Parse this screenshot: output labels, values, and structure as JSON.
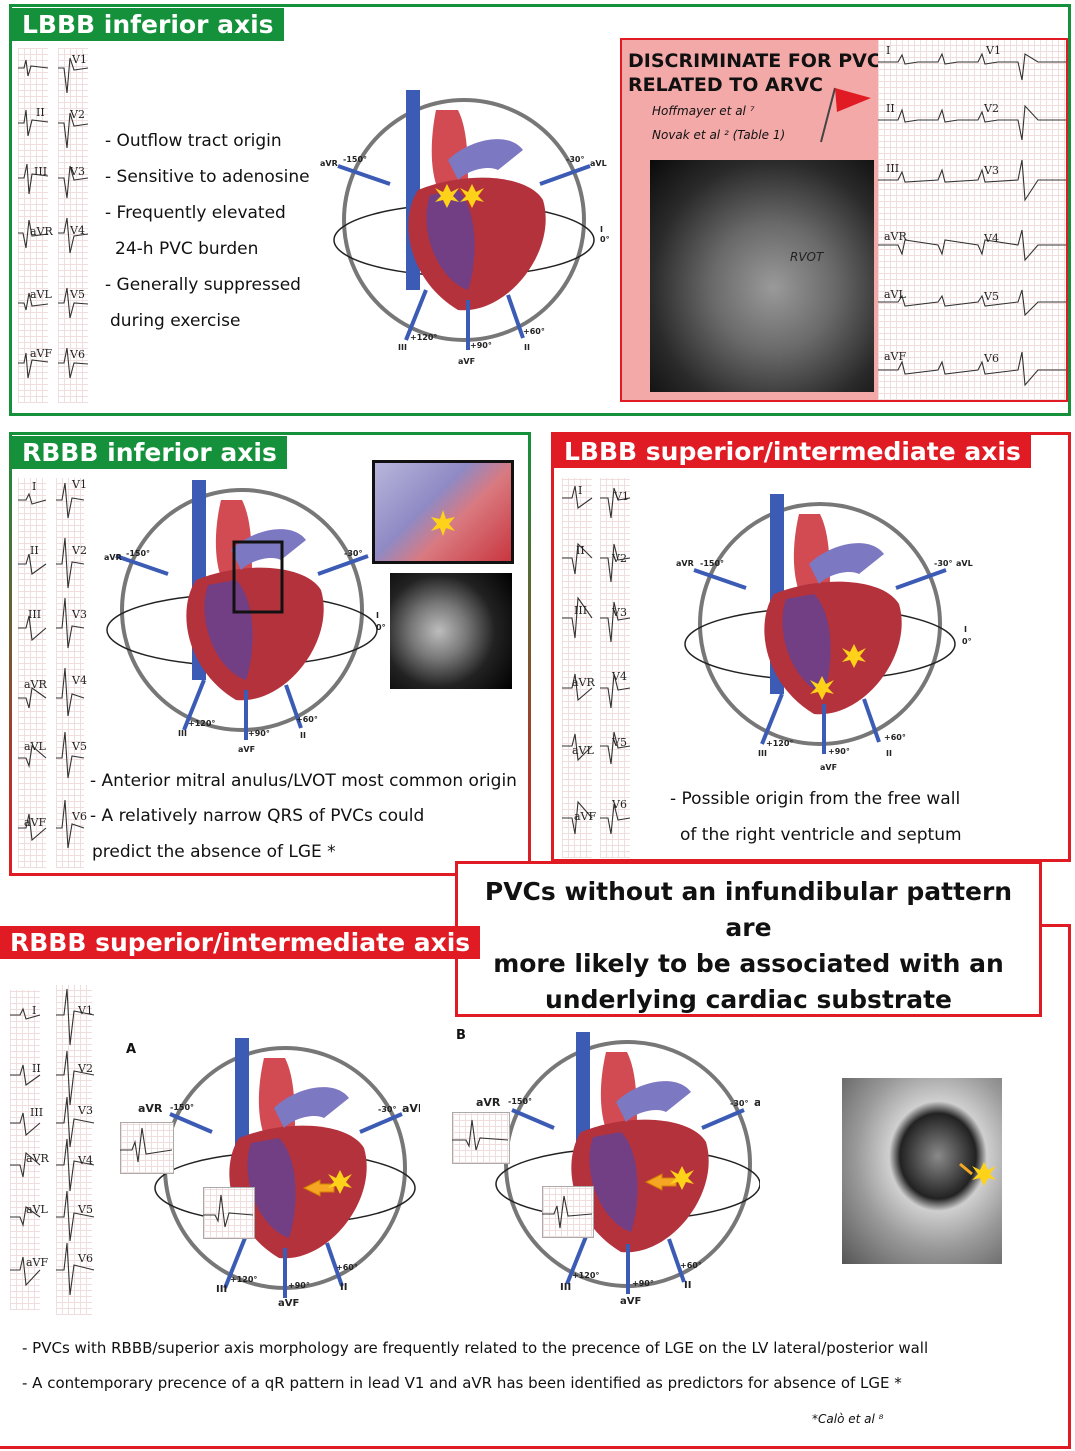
{
  "colors": {
    "green": "#14913a",
    "red": "#e01b24",
    "pink_bg": "#f4a9a9",
    "heart_red": "#c9363f",
    "vein_blue": "#3b5bb5"
  },
  "panel1": {
    "title": "LBBB inferior axis",
    "leads_left": [
      "II",
      "III",
      "aVR",
      "aVL",
      "aVF"
    ],
    "leads_right": [
      "V1",
      "V2",
      "V3",
      "V4",
      "V5",
      "V6"
    ],
    "bullets": [
      "- Outflow tract origin",
      "- Sensitive to adenosine",
      "- Frequently elevated",
      "24-h PVC burden",
      "- Generally suppressed",
      "during exercise"
    ]
  },
  "arvc_box": {
    "title_line1": "DISCRIMINATE FOR PVC",
    "title_line2": "RELATED TO ARVC",
    "ref1": "Hoffmayer et al ⁷",
    "ref2": "Novak et al  ²  (Table 1)",
    "mri_label": "RVOT",
    "ecg_leads_left": [
      "I",
      "II",
      "III",
      "aVR",
      "aVL",
      "aVF"
    ],
    "ecg_leads_right": [
      "V1",
      "V2",
      "V3",
      "V4",
      "V5",
      "V6"
    ]
  },
  "panel2": {
    "title": "RBBB inferior axis",
    "leads_left": [
      "I",
      "II",
      "III",
      "aVR",
      "aVL",
      "aVF"
    ],
    "leads_right": [
      "V1",
      "V2",
      "V3",
      "V4",
      "V5",
      "V6"
    ],
    "bullets": [
      "- Anterior mitral anulus/LVOT most common origin",
      "- A relatively narrow QRS of PVCs could",
      "predict the absence of LGE *"
    ]
  },
  "panel3": {
    "title": "LBBB superior/intermediate axis",
    "leads_left": [
      "I",
      "II",
      "III",
      "aVR",
      "aVL",
      "aVF"
    ],
    "leads_right": [
      "V1",
      "V2",
      "V3",
      "V4",
      "V5",
      "V6"
    ],
    "bullets": [
      "- Possible origin from the free wall",
      "of the right ventricle and septum"
    ]
  },
  "key_message": {
    "line1": "PVCs without an infundibular pattern are",
    "line2": "more likely to be  associated with an",
    "line3": "underlying  cardiac substrate"
  },
  "panel4": {
    "title": "RBBB superior/intermediate axis",
    "leads_left": [
      "I",
      "II",
      "III",
      "aVR",
      "aVL",
      "aVF"
    ],
    "leads_right": [
      "V1",
      "V2",
      "V3",
      "V4",
      "V5",
      "V6"
    ],
    "label_a": "A",
    "label_b": "B",
    "bullets": [
      "- PVCs with RBBB/superior axis morphology are frequently related to the precence of LGE on the LV lateral/posterior wall",
      "- A contemporary precence of  a qR pattern in lead V1 and aVR  has been identified as predictors for absence of LGE *"
    ],
    "footnote": "*Calò et al ⁸"
  },
  "axis_labels": {
    "avr": "aVR",
    "m150": "-150°",
    "m30": "-30°",
    "avl": "aVL",
    "i": "I",
    "zero": "0°",
    "p120": "+120°",
    "iii": "III",
    "p90": "+90°",
    "avf": "aVF",
    "p60": "+60°",
    "ii": "II"
  }
}
